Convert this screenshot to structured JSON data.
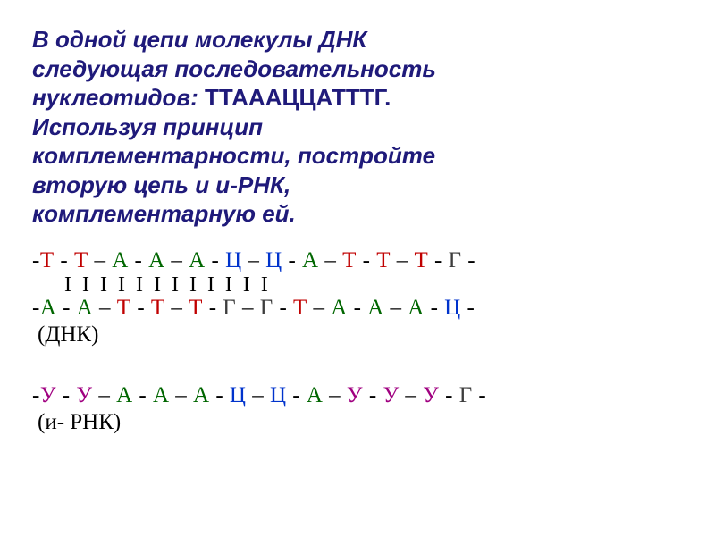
{
  "title_lines": [
    "В одной цепи молекулы ДНК",
    "следующая последовательность",
    "нуклеотидов: ",
    "Используя принцип",
    "комплементарности,  постройте",
    "вторую цепь и и-РНК,",
    "комплементарную ей."
  ],
  "sequence_highlight": "ТТАААЦЦАТТТГ.",
  "colors": {
    "title": "#1f1a7a",
    "T": "#c00000",
    "A": "#006600",
    "C": "#0033cc",
    "G": "#3d3d3d",
    "dash": "#000000",
    "background": "#ffffff",
    "U": "#a00080"
  },
  "dna_strand1": [
    {
      "l": "Т",
      "c": "#c00000"
    },
    {
      "l": "Т",
      "c": "#c00000"
    },
    {
      "l": "А",
      "c": "#006600"
    },
    {
      "l": "А",
      "c": "#006600"
    },
    {
      "l": "А",
      "c": "#006600"
    },
    {
      "l": "Ц",
      "c": "#0033cc"
    },
    {
      "l": "Ц",
      "c": "#0033cc"
    },
    {
      "l": "А",
      "c": "#006600"
    },
    {
      "l": "Т",
      "c": "#c00000"
    },
    {
      "l": "Т",
      "c": "#c00000"
    },
    {
      "l": "Т",
      "c": "#c00000"
    },
    {
      "l": "Г",
      "c": "#3d3d3d"
    }
  ],
  "dna_strand2": [
    {
      "l": "А",
      "c": "#006600"
    },
    {
      "l": "А",
      "c": "#006600"
    },
    {
      "l": "Т",
      "c": "#c00000"
    },
    {
      "l": "Т",
      "c": "#c00000"
    },
    {
      "l": "Т",
      "c": "#c00000"
    },
    {
      "l": "Г",
      "c": "#3d3d3d"
    },
    {
      "l": "Г",
      "c": "#3d3d3d"
    },
    {
      "l": "Т",
      "c": "#c00000"
    },
    {
      "l": "А",
      "c": "#006600"
    },
    {
      "l": "А",
      "c": "#006600"
    },
    {
      "l": "А",
      "c": "#006600"
    },
    {
      "l": "Ц",
      "c": "#0033cc"
    }
  ],
  "rna_strand": [
    {
      "l": "У",
      "c": "#a00080"
    },
    {
      "l": "У",
      "c": "#a00080"
    },
    {
      "l": "А",
      "c": "#006600"
    },
    {
      "l": "А",
      "c": "#006600"
    },
    {
      "l": "А",
      "c": "#006600"
    },
    {
      "l": "Ц",
      "c": "#0033cc"
    },
    {
      "l": "Ц",
      "c": "#0033cc"
    },
    {
      "l": "А",
      "c": "#006600"
    },
    {
      "l": "У",
      "c": "#a00080"
    },
    {
      "l": "У",
      "c": "#a00080"
    },
    {
      "l": "У",
      "c": "#a00080"
    },
    {
      "l": "Г",
      "c": "#3d3d3d"
    }
  ],
  "tick_count": 12,
  "label_dna": "(ДНК)",
  "label_rna": " (и- РНК)",
  "fontsize": {
    "title": 26,
    "sequence": 25
  }
}
